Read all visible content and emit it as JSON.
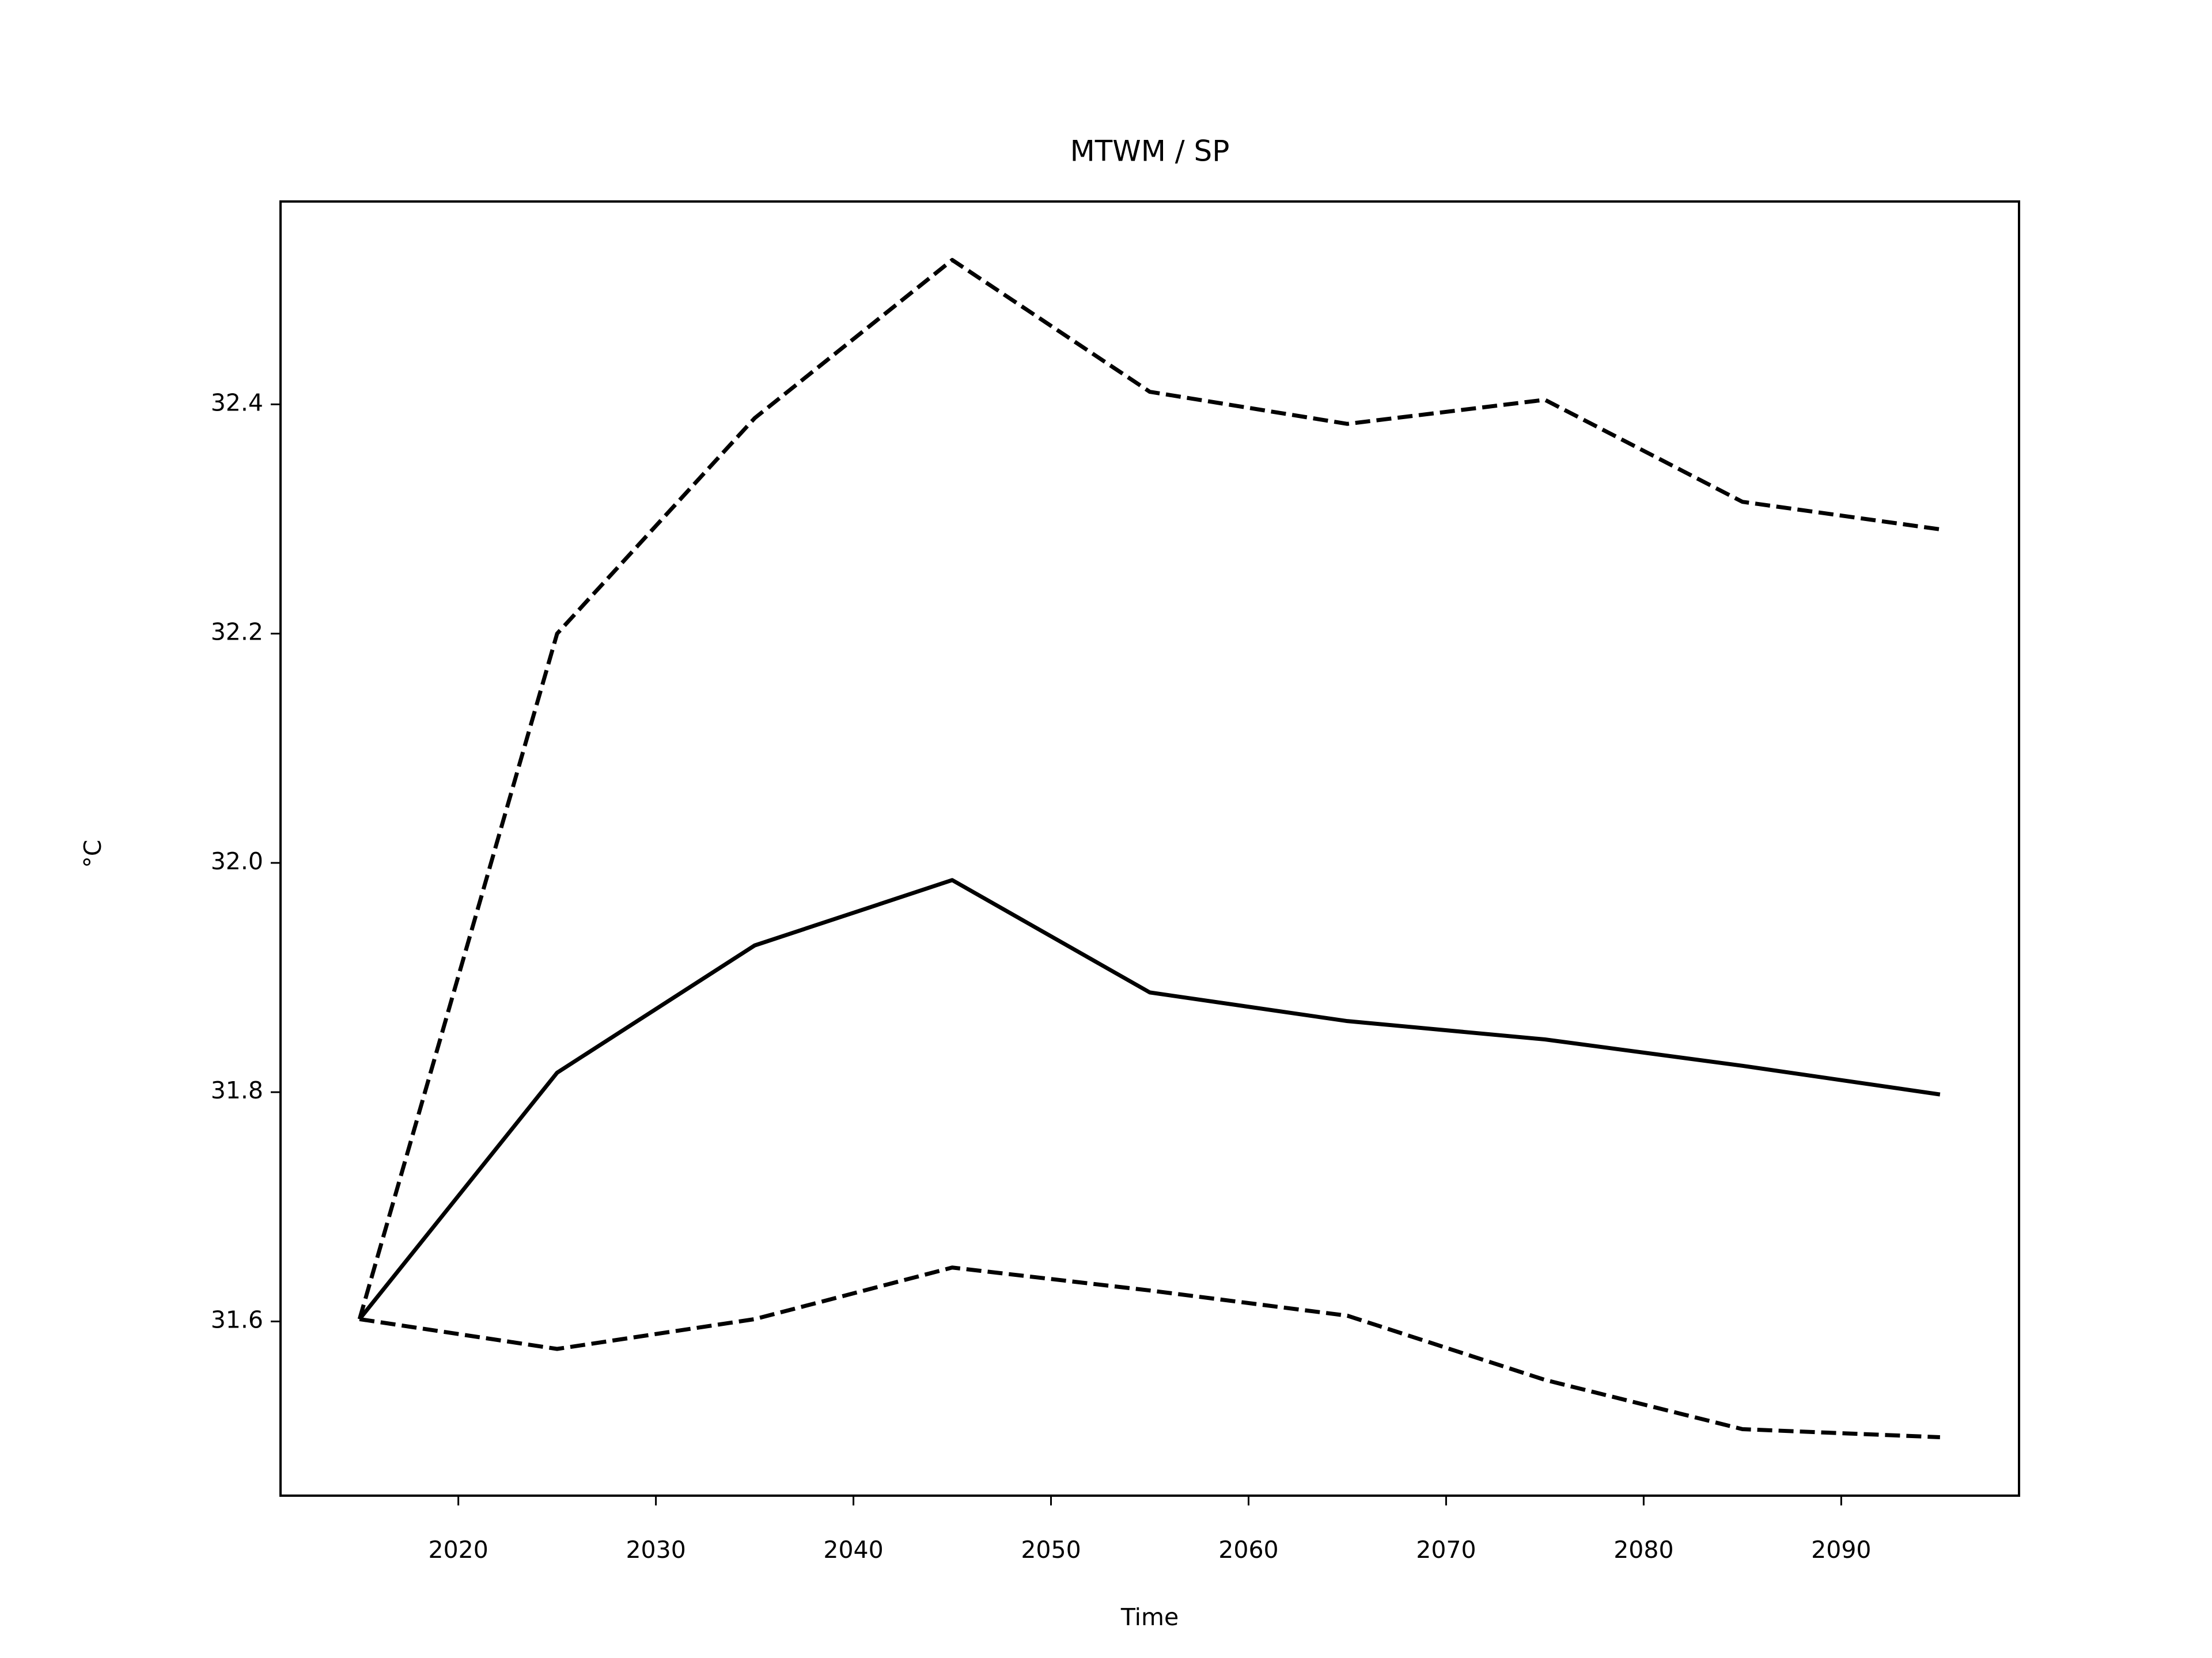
{
  "chart_data": {
    "type": "line",
    "title": "MTWM / SP",
    "x_label": "Time",
    "y_label": "°C",
    "x": [
      2015,
      2025,
      2035,
      2045,
      2055,
      2065,
      2075,
      2085,
      2095
    ],
    "series": [
      {
        "color": "#000000",
        "dashed": false,
        "values": [
          31.602,
          31.817,
          31.928,
          31.985,
          31.887,
          31.862,
          31.846,
          31.823,
          31.798
        ]
      },
      {
        "color": "#000000",
        "dashed": true,
        "values": [
          31.602,
          32.2,
          32.388,
          32.526,
          32.411,
          32.383,
          32.404,
          32.315,
          32.291
        ]
      },
      {
        "color": "#000000",
        "dashed": true,
        "values": [
          31.602,
          31.576,
          31.602,
          31.647,
          31.627,
          31.605,
          31.549,
          31.506,
          31.499
        ]
      }
    ],
    "xlim": [
      2011,
      2099
    ],
    "xticks": [
      2020,
      2030,
      2040,
      2050,
      2060,
      2070,
      2080,
      2090
    ],
    "ylim": [
      31.448,
      32.577
    ],
    "yticks": [
      {
        "value": 31.6,
        "label": "31.6"
      },
      {
        "value": 31.8,
        "label": "31.8"
      },
      {
        "value": 32.0,
        "label": "32.0"
      },
      {
        "value": 32.2,
        "label": "32.2"
      },
      {
        "value": 32.4,
        "label": "32.4"
      }
    ],
    "grid": false
  }
}
